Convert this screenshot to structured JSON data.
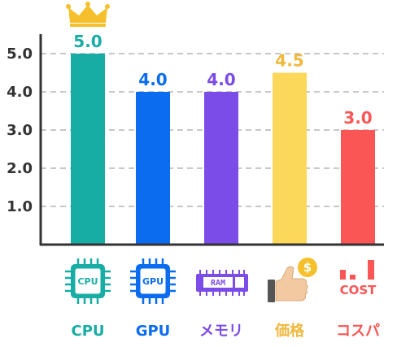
{
  "chart_data": {
    "type": "bar",
    "categories": [
      "CPU",
      "GPU",
      "メモリ",
      "価格",
      "コスパ"
    ],
    "values": [
      5.0,
      4.0,
      4.0,
      4.5,
      3.0
    ],
    "value_labels": [
      "5.0",
      "4.0",
      "4.0",
      "4.5",
      "3.0"
    ],
    "colors": [
      "#17ada4",
      "#0b6cf0",
      "#7c4ce8",
      "#fcd85a",
      "#fb5656"
    ],
    "label_colors": [
      "#17ada4",
      "#0b6cf0",
      "#7c4ce8",
      "#f0b83c",
      "#fb5656"
    ],
    "yticks": [
      "1.0",
      "2.0",
      "3.0",
      "4.0",
      "5.0"
    ],
    "ylim": [
      0,
      5.5
    ],
    "grid": true,
    "icons": [
      "cpu-chip-icon",
      "gpu-chip-icon",
      "ram-module-icon",
      "thumbs-up-dollar-icon",
      "cost-bars-icon"
    ],
    "icon_texts": [
      "CPU",
      "GPU",
      "RAM",
      "$",
      "COST"
    ],
    "top_marker": "crown-icon",
    "crown_color": "#f5c02b"
  }
}
